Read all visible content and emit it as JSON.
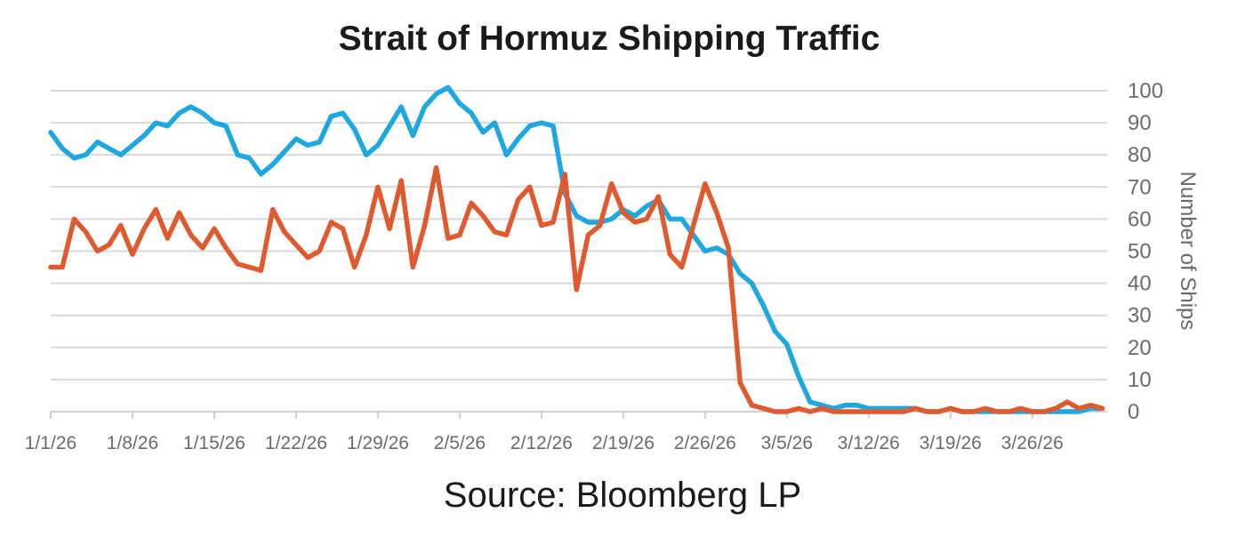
{
  "chart_data": {
    "type": "line",
    "title": "Strait of Hormuz Shipping Traffic",
    "source": "Source: Bloomberg LP",
    "ylabel": "Number of Ships",
    "ylim": [
      0,
      100
    ],
    "y_ticks": [
      0,
      10,
      20,
      30,
      40,
      50,
      60,
      70,
      80,
      90,
      100
    ],
    "y_axis_position": "right",
    "grid": true,
    "x_start": "1/1/26",
    "x_tick_labels": [
      "1/1/26",
      "1/8/26",
      "1/15/26",
      "1/22/26",
      "1/29/26",
      "2/5/26",
      "2/12/26",
      "2/19/26",
      "2/26/26",
      "3/5/26",
      "3/12/26",
      "3/19/26",
      "3/26/26"
    ],
    "x_interval": "daily",
    "series": [
      {
        "color": "#1fa8e0",
        "values": [
          87,
          82,
          79,
          80,
          84,
          82,
          80,
          83,
          86,
          90,
          89,
          93,
          95,
          93,
          90,
          89,
          80,
          79,
          74,
          77,
          81,
          85,
          83,
          84,
          92,
          93,
          88,
          80,
          83,
          89,
          95,
          86,
          95,
          99,
          101,
          96,
          93,
          87,
          90,
          80,
          85,
          89,
          90,
          89,
          68,
          61,
          59,
          59,
          60,
          63,
          61,
          64,
          66,
          60,
          60,
          55,
          50,
          51,
          49,
          43,
          40,
          33,
          25,
          21,
          11,
          3,
          2,
          1,
          2,
          2,
          1,
          1,
          1,
          1,
          1,
          0,
          0,
          1,
          0,
          0,
          0,
          0,
          0,
          0,
          0,
          0,
          0,
          0,
          0,
          1,
          1
        ]
      },
      {
        "color": "#e05a30",
        "values": [
          45,
          45,
          60,
          56,
          50,
          52,
          58,
          49,
          57,
          63,
          54,
          62,
          55,
          51,
          57,
          51,
          46,
          45,
          44,
          63,
          56,
          52,
          48,
          50,
          59,
          57,
          45,
          55,
          70,
          57,
          72,
          45,
          58,
          76,
          54,
          55,
          65,
          61,
          56,
          55,
          66,
          70,
          58,
          59,
          74,
          38,
          55,
          58,
          71,
          62,
          59,
          60,
          67,
          49,
          45,
          58,
          71,
          62,
          51,
          9,
          2,
          1,
          0,
          0,
          1,
          0,
          1,
          0,
          0,
          0,
          0,
          0,
          0,
          0,
          1,
          0,
          0,
          1,
          0,
          0,
          1,
          0,
          0,
          1,
          0,
          0,
          1,
          3,
          1,
          2,
          1
        ]
      }
    ]
  }
}
